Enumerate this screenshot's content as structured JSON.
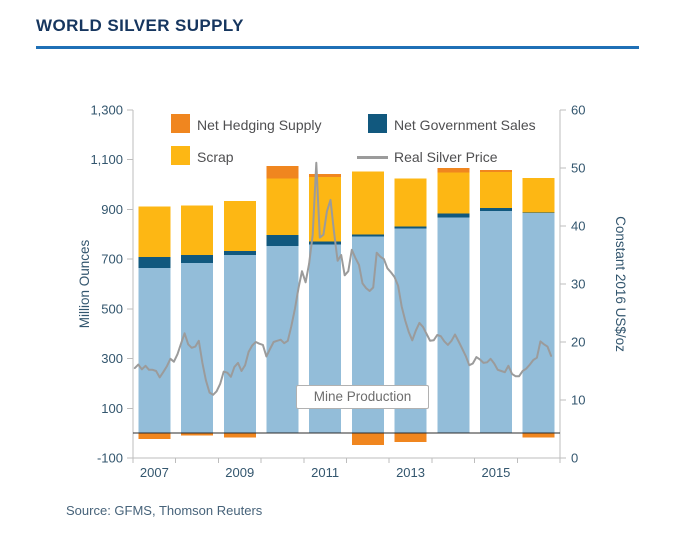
{
  "page": {
    "title": "WORLD SILVER SUPPLY",
    "source": "Source: GFMS, Thomson Reuters",
    "title_color": "#16365f",
    "rule_color": "#1f70b6"
  },
  "chart_data": {
    "type": "stacked-bar+line",
    "title": "WORLD SILVER SUPPLY",
    "categories": [
      2007,
      2008,
      2009,
      2010,
      2011,
      2012,
      2013,
      2014,
      2015,
      2016
    ],
    "series": [
      {
        "name": "Mine Production",
        "color": "#93bdd9",
        "values": [
          665,
          685,
          717,
          753,
          758,
          792,
          823,
          868,
          893,
          886
        ]
      },
      {
        "name": "Net Government Sales",
        "color": "#11587e",
        "values": [
          43,
          31,
          16,
          44,
          12,
          7,
          8,
          16,
          12,
          1
        ]
      },
      {
        "name": "Scrap",
        "color": "#fdb714",
        "values": [
          203,
          200,
          200,
          228,
          260,
          254,
          193,
          165,
          146,
          140
        ]
      },
      {
        "name": "Net Hedging Supply",
        "color": "#f0861f",
        "values": [
          -24,
          -9,
          -17,
          50,
          12,
          -47,
          -35,
          17,
          8,
          -18
        ]
      }
    ],
    "line": {
      "name": "Real Silver Price",
      "color": "#9b9b9b",
      "start_year": 2007,
      "per_year": 12,
      "values": [
        15.5,
        16.1,
        15.3,
        15.9,
        15.2,
        15.2,
        15.0,
        13.9,
        14.8,
        15.8,
        17.1,
        16.6,
        17.9,
        19.7,
        21.5,
        19.6,
        19.0,
        19.2,
        20.2,
        16.4,
        13.4,
        11.3,
        10.9,
        11.5,
        12.8,
        14.9,
        14.7,
        14.0,
        15.7,
        16.4,
        15.0,
        16.0,
        18.3,
        19.4,
        20.0,
        19.7,
        19.5,
        17.5,
        18.8,
        20.0,
        20.2,
        20.4,
        19.8,
        20.2,
        22.7,
        25.7,
        29.3,
        32.2,
        30.3,
        33.5,
        38.5,
        50.9,
        38.0,
        38.5,
        42.5,
        44.5,
        39.0,
        34.0,
        35.0,
        31.5,
        32.2,
        35.9,
        34.5,
        33.3,
        30.1,
        29.3,
        28.8,
        29.4,
        35.4,
        34.7,
        34.3,
        32.7,
        32.0,
        31.2,
        29.7,
        26.1,
        23.7,
        21.7,
        20.3,
        22.0,
        23.3,
        22.6,
        21.4,
        20.2,
        20.3,
        21.2,
        21.0,
        20.1,
        19.5,
        20.2,
        21.3,
        20.1,
        18.9,
        17.6,
        16.0,
        16.3,
        17.4,
        17.0,
        16.4,
        16.5,
        17.1,
        16.3,
        15.2,
        15.0,
        14.8,
        15.9,
        14.5,
        14.1,
        14.1,
        15.0,
        15.4,
        16.1,
        16.9,
        17.3,
        20.1,
        19.6,
        19.2,
        17.6
      ]
    },
    "left_axis": {
      "label": "Million Ounces",
      "min": -100,
      "max": 1300,
      "ticks": [
        -100,
        100,
        300,
        500,
        700,
        900,
        1100,
        1300
      ]
    },
    "right_axis": {
      "label": "Constant 2016 US$/oz",
      "min": 0,
      "max": 60,
      "ticks": [
        0,
        10,
        20,
        30,
        40,
        50,
        60
      ]
    },
    "x_tick_years": [
      2007,
      2009,
      2011,
      2013,
      2015
    ],
    "annotation": "Mine Production",
    "grid": "off",
    "legend_position": "top-inside"
  }
}
